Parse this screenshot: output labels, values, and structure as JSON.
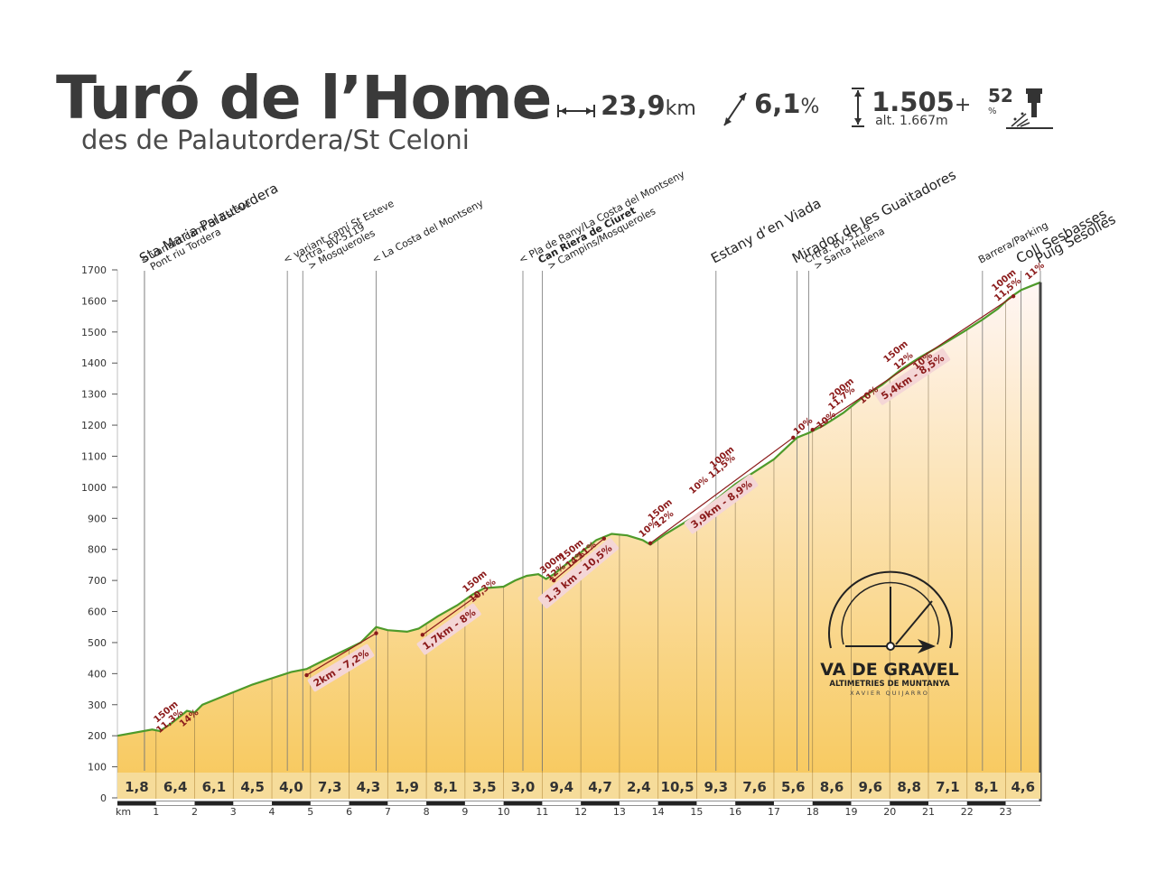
{
  "header": {
    "title": "Turó de l’Home",
    "subtitle": "des de Palautordera/St Celoni",
    "distance_value": "23,9",
    "distance_unit": "km",
    "gradient_value": "6,1",
    "gradient_unit": "%",
    "elevation_value": "1.505",
    "elevation_suffix": "+",
    "altitude_note": "alt. 1.667m",
    "rating_value": "52",
    "rating_unit": "%"
  },
  "logo": {
    "name": "VA DE GRAVEL",
    "tagline": "ALTIMETRIES DE MUNTANYA",
    "author": "XAVIER QUIJARRO"
  },
  "chart_data": {
    "type": "area",
    "xlabel": "km",
    "xlim": [
      0,
      23.9
    ],
    "ylim": [
      0,
      1700
    ],
    "y_ticks": [
      0,
      100,
      200,
      300,
      400,
      500,
      600,
      700,
      800,
      900,
      1000,
      1100,
      1200,
      1300,
      1400,
      1500,
      1600,
      1700
    ],
    "x_ticks": [
      1,
      2,
      3,
      4,
      5,
      6,
      7,
      8,
      9,
      10,
      11,
      12,
      13,
      14,
      15,
      16,
      17,
      18,
      19,
      20,
      21,
      22,
      23
    ],
    "colors": {
      "fill_top": "#fff6f4",
      "fill_bottom": "#f7c85a",
      "line": "#4e9a2a",
      "accent": "#8b1a1a"
    },
    "profile": [
      [
        0,
        200
      ],
      [
        0.9,
        220
      ],
      [
        1.1,
        215
      ],
      [
        1.4,
        240
      ],
      [
        1.8,
        280
      ],
      [
        2.0,
        275
      ],
      [
        2.2,
        300
      ],
      [
        2.6,
        320
      ],
      [
        3.0,
        340
      ],
      [
        3.5,
        365
      ],
      [
        4.0,
        385
      ],
      [
        4.5,
        405
      ],
      [
        4.9,
        415
      ],
      [
        5.3,
        440
      ],
      [
        5.8,
        470
      ],
      [
        6.3,
        500
      ],
      [
        6.7,
        550
      ],
      [
        7.0,
        540
      ],
      [
        7.5,
        535
      ],
      [
        7.8,
        545
      ],
      [
        8.3,
        585
      ],
      [
        8.8,
        620
      ],
      [
        9.2,
        655
      ],
      [
        9.5,
        675
      ],
      [
        10.0,
        680
      ],
      [
        10.3,
        700
      ],
      [
        10.6,
        715
      ],
      [
        10.9,
        720
      ],
      [
        11.1,
        705
      ],
      [
        11.3,
        720
      ],
      [
        11.6,
        750
      ],
      [
        12.0,
        790
      ],
      [
        12.4,
        830
      ],
      [
        12.8,
        850
      ],
      [
        13.2,
        845
      ],
      [
        13.6,
        830
      ],
      [
        13.8,
        815
      ],
      [
        14.2,
        850
      ],
      [
        14.6,
        880
      ],
      [
        15.0,
        910
      ],
      [
        15.5,
        960
      ],
      [
        16.0,
        1010
      ],
      [
        16.5,
        1050
      ],
      [
        17.0,
        1090
      ],
      [
        17.6,
        1160
      ],
      [
        17.9,
        1175
      ],
      [
        18.3,
        1200
      ],
      [
        18.8,
        1240
      ],
      [
        19.3,
        1290
      ],
      [
        19.8,
        1330
      ],
      [
        20.3,
        1380
      ],
      [
        20.8,
        1420
      ],
      [
        21.3,
        1455
      ],
      [
        21.9,
        1500
      ],
      [
        22.4,
        1540
      ],
      [
        22.8,
        1575
      ],
      [
        23.1,
        1610
      ],
      [
        23.4,
        1635
      ],
      [
        23.7,
        1650
      ],
      [
        23.9,
        1660
      ]
    ],
    "segment_gradients": [
      {
        "km": 1,
        "value": "1,8"
      },
      {
        "km": 2,
        "value": "6,4"
      },
      {
        "km": 3,
        "value": "6,1"
      },
      {
        "km": 4,
        "value": "4,5"
      },
      {
        "km": 5,
        "value": "4,0"
      },
      {
        "km": 6,
        "value": "7,3"
      },
      {
        "km": 7,
        "value": "4,3"
      },
      {
        "km": 8,
        "value": "1,9"
      },
      {
        "km": 9,
        "value": "8,1"
      },
      {
        "km": 10,
        "value": "3,5"
      },
      {
        "km": 11,
        "value": "3,0"
      },
      {
        "km": 12,
        "value": "9,4"
      },
      {
        "km": 13,
        "value": "4,7"
      },
      {
        "km": 14,
        "value": "2,4"
      },
      {
        "km": 15,
        "value": "10,5"
      },
      {
        "km": 16,
        "value": "9,3"
      },
      {
        "km": 17,
        "value": "7,6"
      },
      {
        "km": 18,
        "value": "5,6"
      },
      {
        "km": 19,
        "value": "8,6"
      },
      {
        "km": 20,
        "value": "9,6"
      },
      {
        "km": 21,
        "value": "8,8"
      },
      {
        "km": 22,
        "value": "7,1"
      },
      {
        "km": 23,
        "value": "8,1"
      },
      {
        "km": 23.9,
        "value": "4,6"
      }
    ],
    "waypoints": [
      {
        "km": 0.7,
        "label": "Sta Maria Palautordera",
        "sub": "Pont riu Tordera",
        "big": true
      },
      {
        "km": 0.7,
        "label": "< variant camí St Esteve",
        "sub": "",
        "big": false
      },
      {
        "km": 4.4,
        "label": "< variant camí St Esteve",
        "sub": "",
        "big": false
      },
      {
        "km": 4.8,
        "label": "Crtra. BV-5119",
        "sub": "> Mosqueroles",
        "big": false
      },
      {
        "km": 6.7,
        "label": "< La Costa del Montseny",
        "sub": "",
        "big": false
      },
      {
        "km": 10.5,
        "label": "< Pla de Rany/La Costa del Montseny",
        "sub": "",
        "big": false
      },
      {
        "km": 11.0,
        "label": "Can Riera de Ciuret",
        "sub": "> Campins/Mosqueroles",
        "big": false,
        "bold": true
      },
      {
        "km": 15.5,
        "label": "Estany d’en Viada",
        "sub": "",
        "big": true
      },
      {
        "km": 17.6,
        "label": "Mirador de les Guaitadores",
        "sub": "",
        "big": true
      },
      {
        "km": 17.9,
        "label": "Crtra. BV-5119",
        "sub": "> Santa Helena",
        "big": false
      },
      {
        "km": 22.4,
        "label": "Barrera/Parking",
        "sub": "",
        "big": false
      },
      {
        "km": 23.4,
        "label": "Coll Sesbasses",
        "sub": "",
        "big": true
      },
      {
        "km": 23.9,
        "label": "Puig Sesolles",
        "sub": "",
        "big": true
      }
    ],
    "climbs": [
      {
        "from_km": 4.9,
        "from_alt": 395,
        "to_km": 6.7,
        "to_alt": 530,
        "label": "2km - 7,2%"
      },
      {
        "from_km": 7.9,
        "from_alt": 525,
        "to_km": 9.3,
        "to_alt": 650,
        "label": "1,7km - 8%"
      },
      {
        "from_km": 11.3,
        "from_alt": 700,
        "to_km": 12.6,
        "to_alt": 835,
        "label": "1,3 km - 10,5%"
      },
      {
        "from_km": 13.8,
        "from_alt": 820,
        "to_km": 17.5,
        "to_alt": 1160,
        "label": "3,9km - 8,9%"
      },
      {
        "from_km": 18.0,
        "from_alt": 1185,
        "to_km": 23.2,
        "to_alt": 1615,
        "label": "5,4km - 8,5%"
      }
    ],
    "steep_marks": [
      {
        "km": 1.3,
        "alt": 270,
        "text": "150m"
      },
      {
        "km": 1.4,
        "alt": 240,
        "text": "11,3%"
      },
      {
        "km": 1.9,
        "alt": 250,
        "text": "14%"
      },
      {
        "km": 9.3,
        "alt": 690,
        "text": "150m"
      },
      {
        "km": 9.5,
        "alt": 660,
        "text": "10,3%"
      },
      {
        "km": 11.3,
        "alt": 750,
        "text": "300m"
      },
      {
        "km": 11.4,
        "alt": 720,
        "text": "12%"
      },
      {
        "km": 11.8,
        "alt": 790,
        "text": "150m"
      },
      {
        "km": 11.9,
        "alt": 760,
        "text": "14%"
      },
      {
        "km": 12.2,
        "alt": 790,
        "text": "11%"
      },
      {
        "km": 13.8,
        "alt": 860,
        "text": "10%"
      },
      {
        "km": 14.1,
        "alt": 920,
        "text": "150m"
      },
      {
        "km": 14.2,
        "alt": 890,
        "text": "12%"
      },
      {
        "km": 15.1,
        "alt": 1000,
        "text": "10%"
      },
      {
        "km": 15.7,
        "alt": 1090,
        "text": "100m"
      },
      {
        "km": 15.7,
        "alt": 1060,
        "text": "11,5%"
      },
      {
        "km": 17.8,
        "alt": 1190,
        "text": "10%"
      },
      {
        "km": 18.4,
        "alt": 1210,
        "text": "10%"
      },
      {
        "km": 18.8,
        "alt": 1310,
        "text": "200m"
      },
      {
        "km": 18.8,
        "alt": 1280,
        "text": "11,7%"
      },
      {
        "km": 19.5,
        "alt": 1290,
        "text": "10%"
      },
      {
        "km": 20.2,
        "alt": 1430,
        "text": "150m"
      },
      {
        "km": 20.4,
        "alt": 1400,
        "text": "12%"
      },
      {
        "km": 20.9,
        "alt": 1400,
        "text": "10%"
      },
      {
        "km": 23.0,
        "alt": 1660,
        "text": "100m"
      },
      {
        "km": 23.1,
        "alt": 1630,
        "text": "11,5%"
      },
      {
        "km": 23.8,
        "alt": 1690,
        "text": "11%"
      }
    ]
  }
}
